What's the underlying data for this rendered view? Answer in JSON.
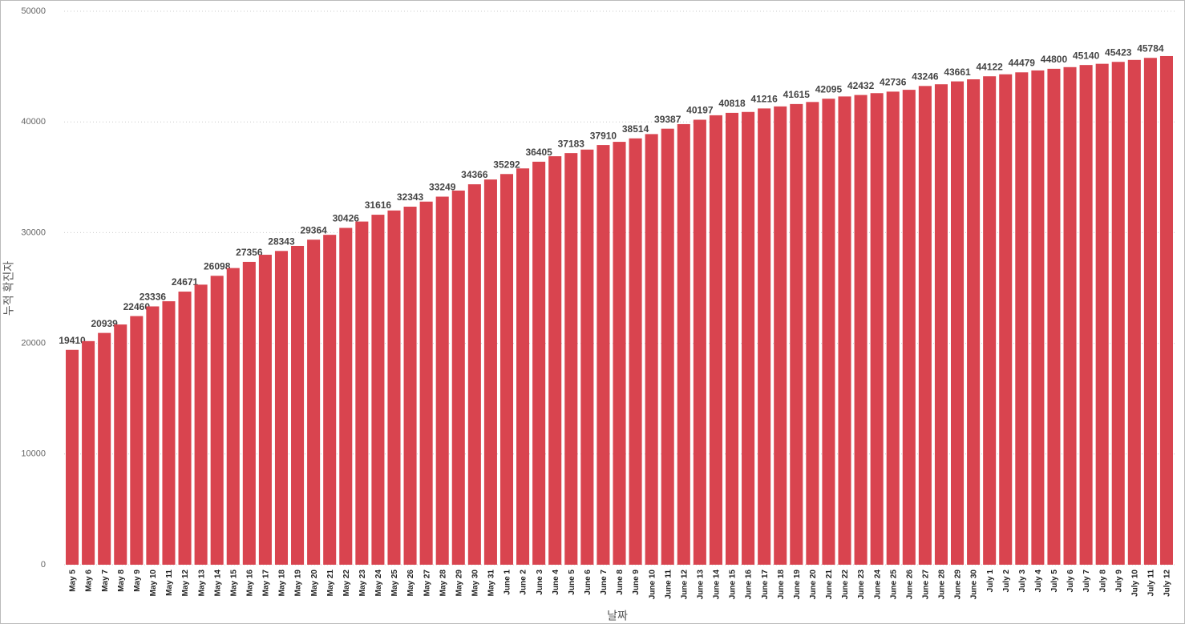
{
  "chart_data": {
    "type": "bar",
    "x_label": "날짜",
    "y_label": "누적 확진자",
    "color": "#d9444f",
    "grid": true,
    "ylim": [
      0,
      50000
    ],
    "yticks": [
      0,
      10000,
      20000,
      30000,
      40000,
      50000
    ],
    "categories": [
      "May 5",
      "May 6",
      "May 7",
      "May 8",
      "May 9",
      "May 10",
      "May 11",
      "May 12",
      "May 13",
      "May 14",
      "May 15",
      "May 16",
      "May 17",
      "May 18",
      "May 19",
      "May 20",
      "May 21",
      "May 22",
      "May 23",
      "May 24",
      "May 25",
      "May 26",
      "May 27",
      "May 28",
      "May 29",
      "May 30",
      "May 31",
      "June 1",
      "June 2",
      "June 3",
      "June 4",
      "June 5",
      "June 6",
      "June 7",
      "June 8",
      "June 9",
      "June 10",
      "June 11",
      "June 12",
      "June 13",
      "June 14",
      "June 15",
      "June 16",
      "June 17",
      "June 18",
      "June 19",
      "June 20",
      "June 21",
      "June 22",
      "June 23",
      "June 24",
      "June 25",
      "June 26",
      "June 27",
      "June 28",
      "June 29",
      "June 30",
      "July 1",
      "July 2",
      "July 3",
      "July 4",
      "July 5",
      "July 6",
      "July 7",
      "July 8",
      "July 9",
      "July 10",
      "July 11",
      "July 12"
    ],
    "values": [
      19410,
      20200,
      20939,
      21700,
      22460,
      23336,
      23800,
      24671,
      25300,
      26098,
      26800,
      27356,
      28000,
      28343,
      28800,
      29364,
      29800,
      30426,
      31000,
      31616,
      32000,
      32343,
      32800,
      33249,
      33800,
      34366,
      34800,
      35292,
      35800,
      36405,
      36900,
      37183,
      37500,
      37910,
      38200,
      38514,
      38900,
      39387,
      39800,
      40197,
      40600,
      40818,
      40900,
      41216,
      41400,
      41615,
      41800,
      42095,
      42300,
      42432,
      42600,
      42736,
      42900,
      43246,
      43400,
      43661,
      43850,
      44122,
      44300,
      44479,
      44650,
      44800,
      44950,
      45140,
      45250,
      45423,
      45600,
      45784,
      45950
    ],
    "value_labels": [
      "19410",
      null,
      "20939",
      null,
      "22460",
      "23336",
      null,
      "24671",
      null,
      "26098",
      null,
      "27356",
      null,
      "28343",
      null,
      "29364",
      null,
      "30426",
      null,
      "31616",
      null,
      "32343",
      null,
      "33249",
      null,
      "34366",
      null,
      "35292",
      null,
      "36405",
      null,
      "37183",
      null,
      "37910",
      null,
      "38514",
      null,
      "39387",
      null,
      "40197",
      null,
      "40818",
      null,
      "41216",
      null,
      "41615",
      null,
      "42095",
      null,
      "42432",
      null,
      "42736",
      null,
      "43246",
      null,
      "43661",
      null,
      "44122",
      null,
      "44479",
      null,
      "44800",
      null,
      "45140",
      null,
      "45423",
      null,
      "45784",
      null
    ]
  }
}
